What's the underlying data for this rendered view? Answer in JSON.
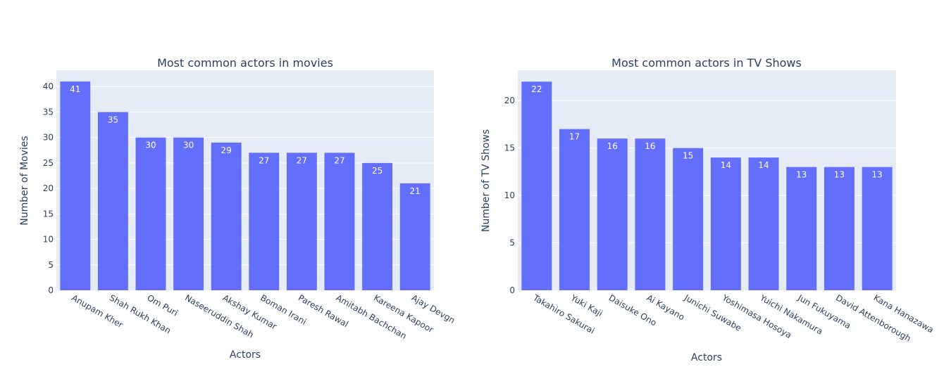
{
  "chart_data": [
    {
      "type": "bar",
      "title": "Most common actors in movies",
      "xlabel": "Actors",
      "ylabel": "Number of Movies",
      "categories": [
        "Anupam Kher",
        "Shah Rukh Khan",
        "Om Puri",
        "Naseeruddin Shah",
        "Akshay Kumar",
        "Boman Irani",
        "Paresh Rawal",
        "Amitabh Bachchan",
        "Kareena Kapoor",
        "Ajay Devgn"
      ],
      "values": [
        41,
        35,
        30,
        30,
        29,
        27,
        27,
        27,
        25,
        21
      ],
      "yticks": [
        0,
        5,
        10,
        15,
        20,
        25,
        30,
        35,
        40
      ],
      "ylim": [
        0,
        43.2
      ],
      "grid": true,
      "bar_color": "#636efa",
      "plot_bgcolor": "#e5ecf6"
    },
    {
      "type": "bar",
      "title": "Most common actors in TV Shows",
      "xlabel": "Actors",
      "ylabel": "Number of TV Shows",
      "categories": [
        "Takahiro Sakurai",
        "Yuki Kaji",
        "Daisuke Ono",
        "Ai Kayano",
        "Junichi Suwabe",
        "Yoshimasa Hosoya",
        "Yuichi Nakamura",
        "Jun Fukuyama",
        "David Attenborough",
        "Kana Hanazawa"
      ],
      "values": [
        22,
        17,
        16,
        16,
        15,
        14,
        14,
        13,
        13,
        13
      ],
      "yticks": [
        0,
        5,
        10,
        15,
        20
      ],
      "ylim": [
        0,
        23.2
      ],
      "grid": true,
      "bar_color": "#636efa",
      "plot_bgcolor": "#e5ecf6"
    }
  ]
}
